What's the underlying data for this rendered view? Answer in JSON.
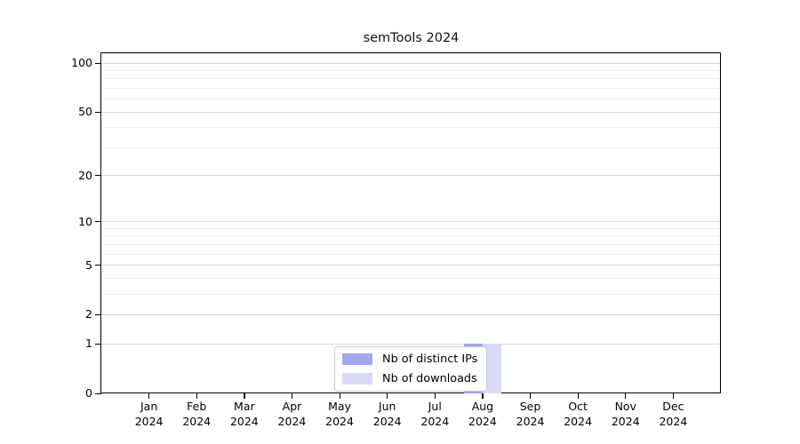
{
  "title": "semTools 2024",
  "chart_data": {
    "type": "bar",
    "title": "semTools 2024",
    "y_scale": "log1p",
    "grid": "horizontal",
    "legend_position": "bottom-center",
    "categories": [
      "Jan",
      "Feb",
      "Mar",
      "Apr",
      "May",
      "Jun",
      "Jul",
      "Aug",
      "Sep",
      "Oct",
      "Nov",
      "Dec"
    ],
    "year": "2024",
    "series": [
      {
        "name": "Nb of distinct IPs",
        "color": "#a5a5f0",
        "values": [
          0,
          0,
          0,
          0,
          0,
          0,
          0,
          1,
          0,
          0,
          0,
          0
        ]
      },
      {
        "name": "Nb of downloads",
        "color": "#d9d9f7",
        "values": [
          0,
          0,
          0,
          0,
          0,
          0,
          0,
          1,
          0,
          0,
          0,
          0
        ]
      }
    ],
    "y_ticks": [
      0,
      1,
      2,
      5,
      10,
      20,
      50,
      100
    ],
    "y_gridlines": [
      1,
      2,
      3,
      4,
      5,
      6,
      7,
      8,
      9,
      10,
      20,
      30,
      40,
      50,
      60,
      70,
      80,
      90,
      100
    ],
    "ylim": [
      0,
      115
    ],
    "xlabel": "",
    "ylabel": ""
  }
}
